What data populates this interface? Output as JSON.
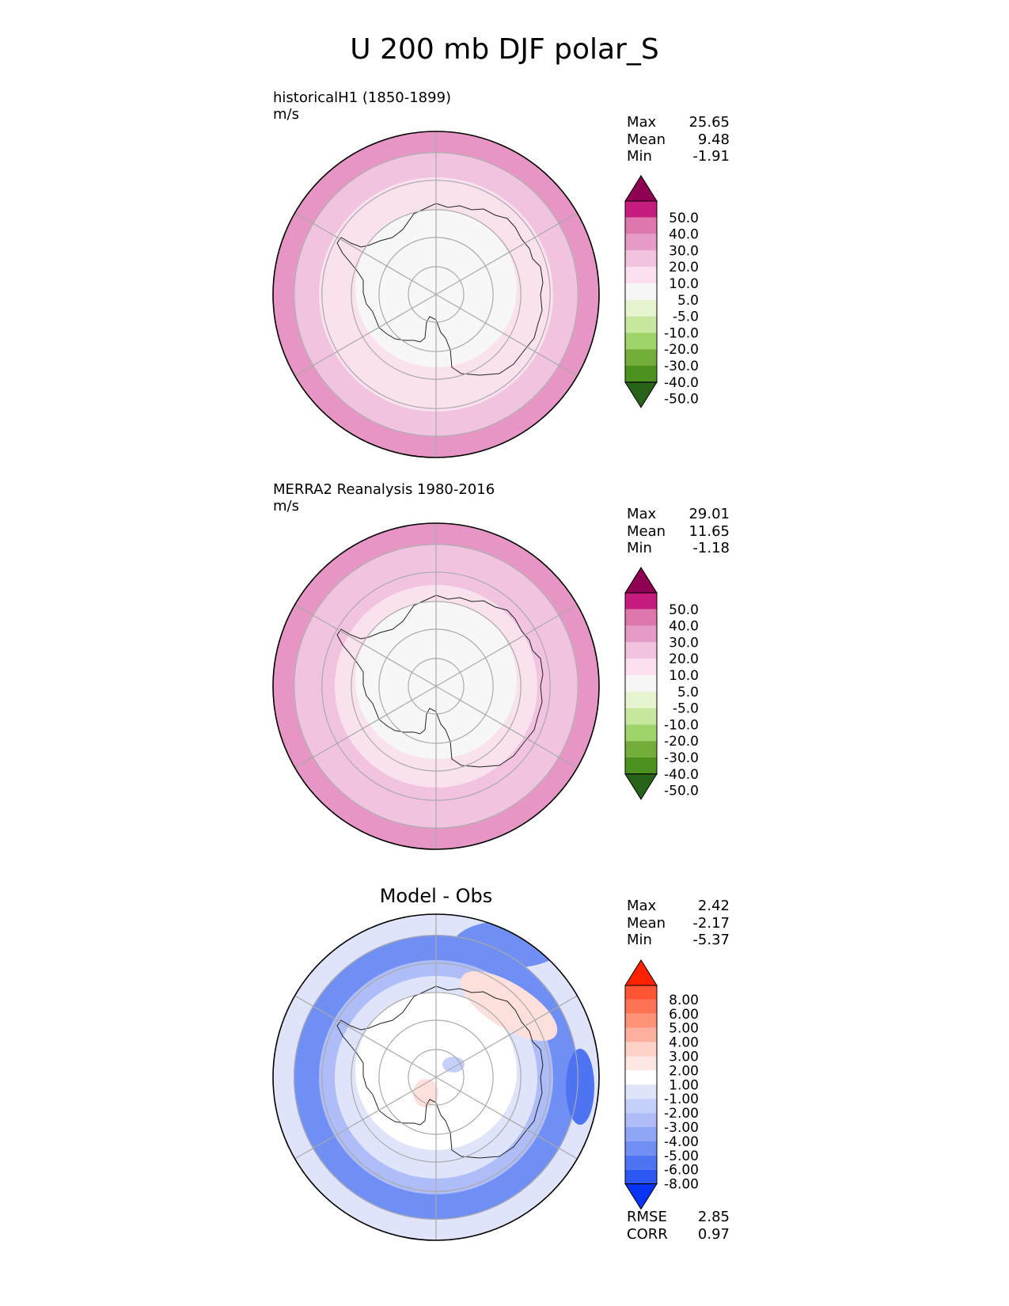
{
  "title": "U 200 mb DJF polar_S",
  "panels": [
    {
      "label_line1": "historicalH1 (1850-1899)",
      "label_line2": "m/s",
      "stats": [
        {
          "k": "Max",
          "v": "25.65"
        },
        {
          "k": "Mean",
          "v": "9.48"
        },
        {
          "k": "Min",
          "v": "-1.91"
        }
      ],
      "ring_colors": [
        "#e695c4",
        "#f2c3df",
        "#f9e1ee",
        "#f9e1ee",
        "#f7f7f7"
      ],
      "colorbar": {
        "levels": [
          "50.0",
          "40.0",
          "30.0",
          "20.0",
          "10.0",
          "5.0",
          "-5.0",
          "-10.0",
          "-20.0",
          "-30.0",
          "-40.0",
          "-50.0"
        ],
        "colors": [
          "#8e0152",
          "#c51b7d",
          "#de77ae",
          "#e69ac6",
          "#f1c3de",
          "#fde0ef",
          "#f7f7f7",
          "#e6f5d0",
          "#c7e89e",
          "#9fd46a",
          "#73ad3a",
          "#4d921f",
          "#276419"
        ]
      }
    },
    {
      "label_line1": "MERRA2 Reanalysis 1980-2016",
      "label_line2": "m/s",
      "stats": [
        {
          "k": "Max",
          "v": "29.01"
        },
        {
          "k": "Mean",
          "v": "11.65"
        },
        {
          "k": "Min",
          "v": "-1.18"
        }
      ],
      "ring_colors": [
        "#e695c4",
        "#f2c3df",
        "#f2c3df",
        "#f9e1ee",
        "#f7f7f7"
      ],
      "colorbar": {
        "levels": [
          "50.0",
          "40.0",
          "30.0",
          "20.0",
          "10.0",
          "5.0",
          "-5.0",
          "-10.0",
          "-20.0",
          "-30.0",
          "-40.0",
          "-50.0"
        ],
        "colors": [
          "#8e0152",
          "#c51b7d",
          "#de77ae",
          "#e69ac6",
          "#f1c3de",
          "#fde0ef",
          "#f7f7f7",
          "#e6f5d0",
          "#c7e89e",
          "#9fd46a",
          "#73ad3a",
          "#4d921f",
          "#276419"
        ]
      }
    },
    {
      "center_title": "Model - Obs",
      "stats": [
        {
          "k": "Max",
          "v": "2.42"
        },
        {
          "k": "Mean",
          "v": "-2.17"
        },
        {
          "k": "Min",
          "v": "-5.37"
        }
      ],
      "footer": [
        {
          "k": "RMSE",
          "v": "2.85"
        },
        {
          "k": "CORR",
          "v": "0.97"
        }
      ],
      "ring_colors": [
        "#dfe4fb",
        "#6f8ff5",
        "#aebdf8",
        "#dfe4fb",
        "#ffffff"
      ],
      "colorbar": {
        "levels": [
          "8.00",
          "6.00",
          "5.00",
          "4.00",
          "3.00",
          "2.00",
          "1.00",
          "-1.00",
          "-2.00",
          "-3.00",
          "-4.00",
          "-5.00",
          "-6.00",
          "-8.00"
        ],
        "colors": [
          "#ff2200",
          "#ff5533",
          "#ff7355",
          "#ff9377",
          "#ffb09e",
          "#ffd2c8",
          "#fde7e3",
          "#ffffff",
          "#dfe4fb",
          "#c4cffa",
          "#aebdf8",
          "#8fa6f6",
          "#6f8ff5",
          "#4f74f3",
          "#2c57f3",
          "#0a34f5"
        ]
      }
    }
  ]
}
